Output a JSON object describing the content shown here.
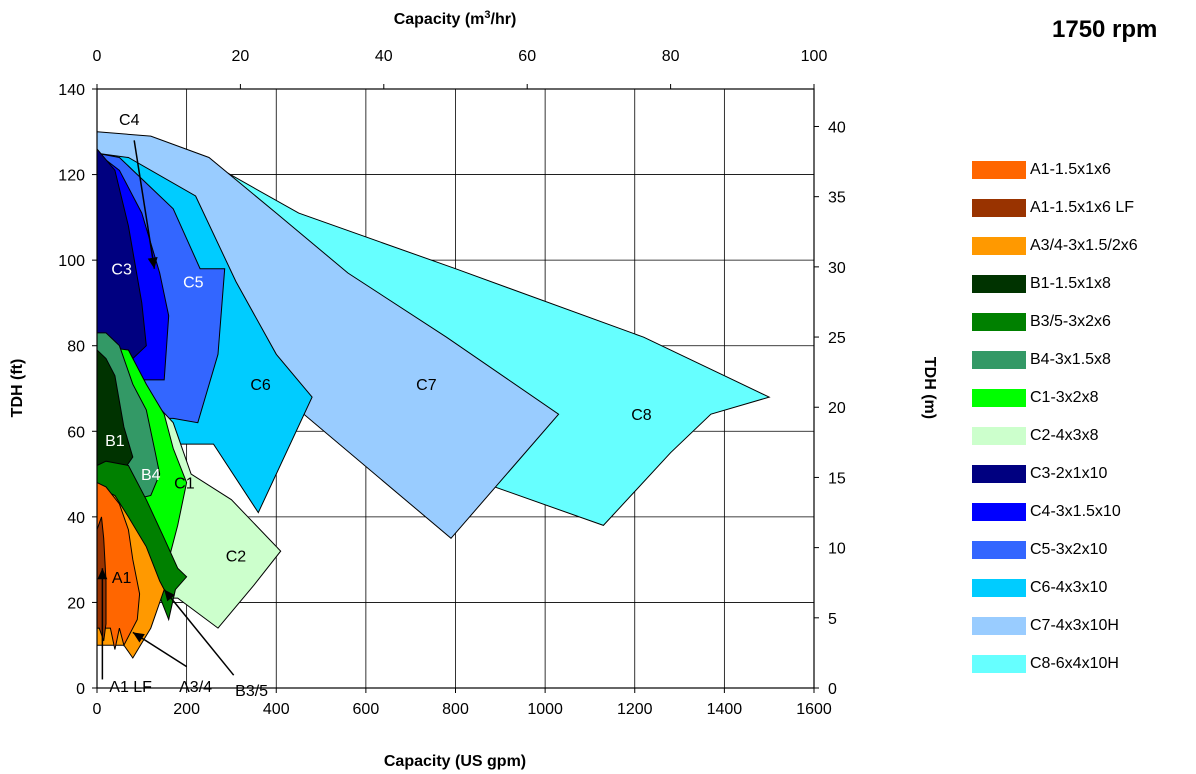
{
  "chart_data": {
    "type": "area",
    "title": "1750 rpm",
    "x_bottom": {
      "label": "Capacity (US gpm)",
      "min": 0,
      "max": 1600,
      "ticks": [
        0,
        200,
        400,
        600,
        800,
        1000,
        1200,
        1400,
        1600
      ]
    },
    "x_top": {
      "label_main": "Capacity (m",
      "label_sup": "3",
      "label_end": "/hr)",
      "min": 0,
      "max": 100,
      "ticks": [
        0,
        20,
        40,
        60,
        80,
        100
      ]
    },
    "y_left": {
      "label": "TDH (ft)",
      "min": 0,
      "max": 140,
      "ticks": [
        0,
        20,
        40,
        60,
        80,
        100,
        120,
        140
      ]
    },
    "y_right": {
      "label": "TDH (m)",
      "min": 0,
      "max": 42.67,
      "ticks": [
        0,
        5,
        10,
        15,
        20,
        25,
        30,
        35,
        40
      ]
    },
    "grid": true,
    "legend_position": "right",
    "series": [
      {
        "name": "C8-6x4x10H",
        "color": "#66FFFF",
        "points": [
          [
            0,
            130
          ],
          [
            230,
            124
          ],
          [
            450,
            111
          ],
          [
            800,
            98
          ],
          [
            1220,
            82
          ],
          [
            1500,
            68
          ],
          [
            1370,
            64
          ],
          [
            1280,
            55
          ],
          [
            1130,
            38
          ],
          [
            860,
            48
          ],
          [
            560,
            64
          ],
          [
            0,
            64
          ]
        ]
      },
      {
        "name": "C7-4x3x10H",
        "color": "#99CCFF",
        "points": [
          [
            0,
            130
          ],
          [
            120,
            129
          ],
          [
            250,
            124
          ],
          [
            400,
            111
          ],
          [
            560,
            97
          ],
          [
            780,
            82
          ],
          [
            1030,
            64
          ],
          [
            790,
            35
          ],
          [
            450,
            65
          ],
          [
            300,
            62
          ],
          [
            0,
            62
          ]
        ]
      },
      {
        "name": "C6-4x3x10",
        "color": "#00CCFF",
        "points": [
          [
            0,
            125
          ],
          [
            70,
            124
          ],
          [
            220,
            115
          ],
          [
            310,
            95
          ],
          [
            400,
            78
          ],
          [
            480,
            68
          ],
          [
            360,
            41
          ],
          [
            260,
            57
          ],
          [
            0,
            57
          ]
        ]
      },
      {
        "name": "C5-3x2x10",
        "color": "#3366FF",
        "points": [
          [
            0,
            125
          ],
          [
            50,
            124
          ],
          [
            170,
            112
          ],
          [
            230,
            98
          ],
          [
            285,
            98
          ],
          [
            270,
            78
          ],
          [
            225,
            62
          ],
          [
            170,
            63
          ],
          [
            0,
            63
          ]
        ]
      },
      {
        "name": "C4-3x1.5x10",
        "color": "#0000FF",
        "points": [
          [
            0,
            125
          ],
          [
            50,
            121
          ],
          [
            100,
            111
          ],
          [
            140,
            97
          ],
          [
            160,
            87
          ],
          [
            150,
            72
          ],
          [
            0,
            72
          ]
        ]
      },
      {
        "name": "C3-2x1x10",
        "color": "#000080",
        "points": [
          [
            0,
            126
          ],
          [
            40,
            121
          ],
          [
            70,
            108
          ],
          [
            100,
            90
          ],
          [
            110,
            80
          ],
          [
            70,
            76
          ],
          [
            0,
            76
          ]
        ]
      },
      {
        "name": "C2-4x3x8",
        "color": "#CCFFCC",
        "points": [
          [
            0,
            76
          ],
          [
            90,
            71
          ],
          [
            170,
            62
          ],
          [
            210,
            50
          ],
          [
            300,
            44
          ],
          [
            410,
            32
          ],
          [
            350,
            24
          ],
          [
            270,
            14
          ],
          [
            180,
            21
          ],
          [
            0,
            21
          ]
        ]
      },
      {
        "name": "C1-3x2x8",
        "color": "#00FF00",
        "points": [
          [
            0,
            80
          ],
          [
            70,
            79
          ],
          [
            110,
            71
          ],
          [
            150,
            64
          ],
          [
            170,
            56
          ],
          [
            200,
            48
          ],
          [
            180,
            38
          ],
          [
            160,
            30
          ],
          [
            70,
            37
          ],
          [
            0,
            37
          ]
        ]
      },
      {
        "name": "B4-3x1.5x8",
        "color": "#339966",
        "points": [
          [
            0,
            83
          ],
          [
            20,
            83
          ],
          [
            50,
            80
          ],
          [
            80,
            71
          ],
          [
            110,
            65
          ],
          [
            130,
            55
          ],
          [
            140,
            50
          ],
          [
            120,
            45
          ],
          [
            80,
            44
          ],
          [
            0,
            44
          ]
        ]
      },
      {
        "name": "B1-1.5x1x8",
        "color": "#003300",
        "points": [
          [
            0,
            79
          ],
          [
            20,
            77
          ],
          [
            40,
            73
          ],
          [
            60,
            61
          ],
          [
            80,
            54
          ],
          [
            60,
            51
          ],
          [
            30,
            49
          ],
          [
            0,
            49
          ]
        ]
      },
      {
        "name": "B3/5-3x2x6",
        "color": "#008000",
        "points": [
          [
            0,
            52
          ],
          [
            20,
            53
          ],
          [
            70,
            52
          ],
          [
            110,
            44
          ],
          [
            150,
            35
          ],
          [
            180,
            28
          ],
          [
            200,
            26
          ],
          [
            175,
            23
          ],
          [
            160,
            16
          ],
          [
            130,
            24
          ],
          [
            70,
            36
          ],
          [
            0,
            36
          ]
        ]
      },
      {
        "name": "A3/4-3x1.5/2x6",
        "color": "#FF9900",
        "points": [
          [
            0,
            47
          ],
          [
            40,
            45
          ],
          [
            70,
            40
          ],
          [
            110,
            33
          ],
          [
            140,
            25
          ],
          [
            150,
            23
          ],
          [
            120,
            14
          ],
          [
            80,
            7
          ],
          [
            60,
            10
          ],
          [
            0,
            10
          ]
        ]
      },
      {
        "name": "A1-1.5x1x6",
        "color": "#FF6600",
        "points": [
          [
            0,
            48
          ],
          [
            20,
            47
          ],
          [
            50,
            43
          ],
          [
            70,
            37
          ],
          [
            80,
            30
          ],
          [
            95,
            22
          ],
          [
            90,
            16
          ],
          [
            60,
            10
          ],
          [
            50,
            14
          ],
          [
            40,
            9
          ],
          [
            30,
            14
          ],
          [
            20,
            14
          ],
          [
            0,
            14
          ]
        ]
      },
      {
        "name": "A1-1.5x1x6 LF",
        "color": "#993300",
        "points": [
          [
            0,
            37
          ],
          [
            10,
            40
          ],
          [
            15,
            35
          ],
          [
            20,
            25
          ],
          [
            20,
            15
          ],
          [
            15,
            11
          ],
          [
            5,
            14
          ],
          [
            0,
            14
          ]
        ]
      }
    ],
    "region_labels": [
      {
        "text": "C8",
        "x": 1215,
        "y": 64
      },
      {
        "text": "C7",
        "x": 735,
        "y": 71
      },
      {
        "text": "C6",
        "x": 365,
        "y": 71
      },
      {
        "text": "C5",
        "x": 215,
        "y": 95
      },
      {
        "text": "C3",
        "x": 55,
        "y": 98
      },
      {
        "text": "C2",
        "x": 310,
        "y": 31
      },
      {
        "text": "C1",
        "x": 195,
        "y": 48
      },
      {
        "text": "B4",
        "x": 120,
        "y": 50
      },
      {
        "text": "B1",
        "x": 40,
        "y": 58
      },
      {
        "text": "A1",
        "x": 55,
        "y": 26
      },
      {
        "text": "C4",
        "x": 72,
        "y": 133
      },
      {
        "text": "A1 LF",
        "x": 75,
        "y": 0.5
      },
      {
        "text": "A3/4",
        "x": 220,
        "y": 0.5
      },
      {
        "text": "B3/5",
        "x": 345,
        "y": -0.5
      }
    ],
    "arrows": [
      {
        "from": [
          83,
          128
        ],
        "to": [
          128,
          98
        ]
      },
      {
        "from": [
          12,
          2
        ],
        "to": [
          12,
          28
        ]
      },
      {
        "from": [
          200,
          5
        ],
        "to": [
          80,
          13
        ]
      },
      {
        "from": [
          305,
          3
        ],
        "to": [
          150,
          23
        ]
      }
    ]
  }
}
